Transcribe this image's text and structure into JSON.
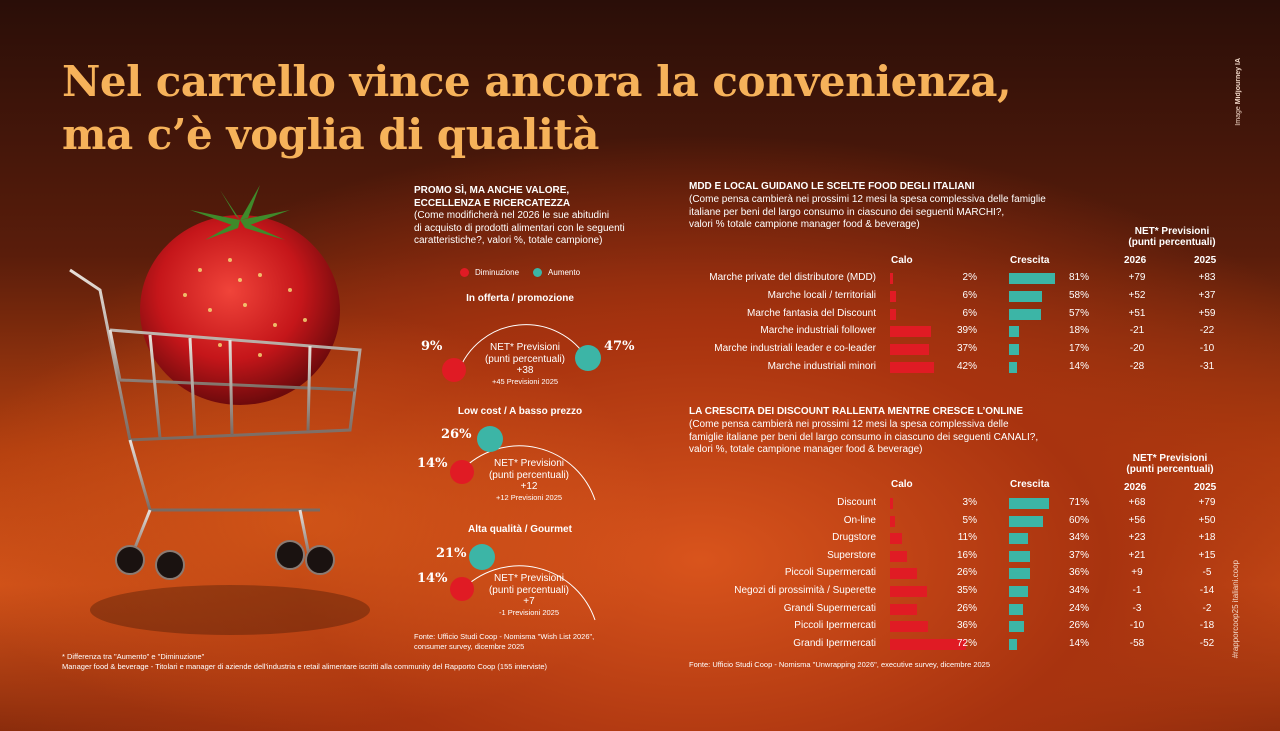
{
  "title_line1": "Nel carrello vince ancora la convenienza,",
  "title_line2": "ma c’è voglia di qualità",
  "credit_prefix": "Image ",
  "credit_name": "Midjourney IA",
  "hashtag": "#rapporcoop25 italiani.coop",
  "promo": {
    "head1": "PROMO SÌ, MA ANCHE VALORE,",
    "head2": "ECCELLENZA E RICERCATEZZA",
    "sub1": "(Come modificherà nel 2026 le sue abitudini",
    "sub2": "di acquisto di prodotti alimentari con le seguenti",
    "sub3": "caratteristiche?, valori %, totale campione)",
    "legend_down": "Diminuzione",
    "legend_up": "Aumento",
    "net_l1": "NET* Previsioni",
    "net_l2": "(punti percentuali)",
    "fonte1": "Fonte: Ufficio Studi Coop - Nomisma \"Wish List 2026\",",
    "fonte2": "consumer survey, dicembre 2025",
    "items": [
      {
        "title": "In offerta / promozione",
        "down": "9%",
        "up": "47%",
        "net": "+38",
        "prev": "+45 Previsioni 2025"
      },
      {
        "title": "Low cost / A basso prezzo",
        "down": "14%",
        "up": "26%",
        "net": "+12",
        "prev": "+12 Previsioni 2025"
      },
      {
        "title": "Alta qualità / Gourmet",
        "down": "14%",
        "up": "21%",
        "net": "+7",
        "prev": "-1 Previsioni 2025"
      }
    ]
  },
  "footnote1": "* Differenza tra \"Aumento\" e \"Diminuzione\"",
  "footnote2": "Manager food & beverage -  Titolari e manager di aziende dell'industria e retail alimentare iscritti alla community del Rapporto Coop (155 interviste)",
  "table1": {
    "head": "MDD E LOCAL GUIDANO LE SCELTE FOOD DEGLI ITALIANI",
    "sub1": "(Come pensa cambierà nei prossimi 12 mesi la spesa complessiva delle famiglie",
    "sub2": "italiane per beni del largo consumo in ciascuno dei seguenti MARCHI?,",
    "sub3": "valori % totale campione manager food & beverage)"
  },
  "table2": {
    "head": "LA CRESCITA DEI DISCOUNT RALLENTA MENTRE CRESCE L’ONLINE",
    "sub1": "(Come pensa cambierà nei prossimi 12 mesi la spesa complessiva delle",
    "sub2": "famiglie italiane per beni del largo consumo in ciascuno dei seguenti CANALI?,",
    "sub3": "valori %, totale campione manager food & beverage)"
  },
  "cols": {
    "calo": "Calo",
    "crescita": "Crescita",
    "net1": "NET* Previsioni",
    "net2": "(punti percentuali)",
    "y2026": "2026",
    "y2025": "2025"
  },
  "fonte_right": "Fonte: Ufficio Studi Coop - Nomisma \"Unwrapping 2026\", executive survey, dicembre 2025",
  "chart_data": [
    {
      "type": "bar",
      "title": "PROMO SÌ, MA ANCHE VALORE, ECCELLENZA E RICERCATEZZA",
      "categories": [
        "In offerta / promozione",
        "Low cost / A basso prezzo",
        "Alta qualità / Gourmet"
      ],
      "series": [
        {
          "name": "Diminuzione",
          "values": [
            9,
            14,
            14
          ]
        },
        {
          "name": "Aumento",
          "values": [
            47,
            26,
            21
          ]
        }
      ],
      "net_2026": [
        38,
        12,
        7
      ],
      "net_2025": [
        45,
        12,
        -1
      ]
    },
    {
      "type": "bar",
      "title": "MDD E LOCAL GUIDANO LE SCELTE FOOD DEGLI ITALIANI",
      "categories": [
        "Marche private del distributore (MDD)",
        "Marche locali / territoriali",
        "Marche fantasia del Discount",
        "Marche industriali follower",
        "Marche industriali leader e co-leader",
        "Marche industriali minori"
      ],
      "series": [
        {
          "name": "Calo",
          "values": [
            2,
            6,
            6,
            39,
            37,
            42
          ]
        },
        {
          "name": "Crescita",
          "values": [
            81,
            58,
            57,
            18,
            17,
            14
          ]
        }
      ],
      "net_2026": [
        "+79",
        "+52",
        "+51",
        "-21",
        "-20",
        "-28"
      ],
      "net_2025": [
        "+83",
        "+37",
        "+59",
        "-22",
        "-10",
        "-31"
      ]
    },
    {
      "type": "bar",
      "title": "LA CRESCITA DEI DISCOUNT RALLENTA MENTRE CRESCE L’ONLINE",
      "categories": [
        "Discount",
        "On-line",
        "Drugstore",
        "Superstore",
        "Piccoli Supermercati",
        "Negozi di prossimità / Superette",
        "Grandi Supermercati",
        "Piccoli Ipermercati",
        "Grandi Ipermercati"
      ],
      "series": [
        {
          "name": "Calo",
          "values": [
            3,
            5,
            11,
            16,
            26,
            35,
            26,
            36,
            72
          ]
        },
        {
          "name": "Crescita",
          "values": [
            71,
            60,
            34,
            37,
            36,
            34,
            24,
            26,
            14
          ]
        }
      ],
      "net_2026": [
        "+68",
        "+56",
        "+23",
        "+21",
        "+9",
        "-1",
        "-3",
        "-10",
        "-58"
      ],
      "net_2025": [
        "+79",
        "+50",
        "+18",
        "+15",
        "-5",
        "-14",
        "-2",
        "-18",
        "-52"
      ]
    }
  ]
}
